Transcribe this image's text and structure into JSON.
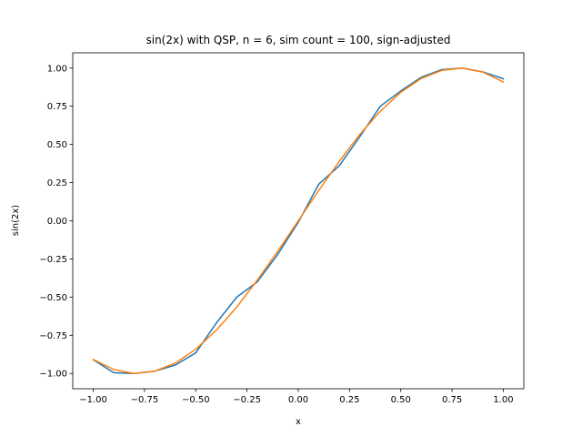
{
  "chart_data": {
    "type": "line",
    "title": "sin(2x) with QSP, n = 6, sim count = 100, sign-adjusted",
    "xlabel": "x",
    "ylabel": "sin(2x)",
    "xlim": [
      -1.1,
      1.1
    ],
    "ylim": [
      -1.1,
      1.1
    ],
    "xticks": [
      "−1.00",
      "−0.75",
      "−0.50",
      "−0.25",
      "0.00",
      "0.25",
      "0.50",
      "0.75",
      "1.00"
    ],
    "xtick_values": [
      -1.0,
      -0.75,
      -0.5,
      -0.25,
      0.0,
      0.25,
      0.5,
      0.75,
      1.0
    ],
    "yticks": [
      "−1.00",
      "−0.75",
      "−0.50",
      "−0.25",
      "0.00",
      "0.25",
      "0.50",
      "0.75",
      "1.00"
    ],
    "ytick_values": [
      -1.0,
      -0.75,
      -0.5,
      -0.25,
      0.0,
      0.25,
      0.5,
      0.75,
      1.0
    ],
    "grid": false,
    "x": [
      -1.0,
      -0.9,
      -0.8,
      -0.7,
      -0.6,
      -0.5,
      -0.4,
      -0.3,
      -0.2,
      -0.1,
      0.0,
      0.1,
      0.2,
      0.3,
      0.4,
      0.5,
      0.6,
      0.7,
      0.8,
      0.9,
      1.0
    ],
    "series": [
      {
        "color": "#1f77b4",
        "values": [
          -0.91,
          -0.995,
          -1.0,
          -0.985,
          -0.945,
          -0.865,
          -0.67,
          -0.5,
          -0.4,
          -0.22,
          -0.01,
          0.24,
          0.36,
          0.55,
          0.75,
          0.85,
          0.94,
          0.99,
          1.0,
          0.975,
          0.93
        ]
      },
      {
        "color": "#ff7f0e",
        "values": [
          -0.909,
          -0.974,
          -1.0,
          -0.985,
          -0.932,
          -0.841,
          -0.717,
          -0.565,
          -0.389,
          -0.199,
          0.0,
          0.199,
          0.389,
          0.565,
          0.717,
          0.841,
          0.932,
          0.985,
          1.0,
          0.974,
          0.909
        ]
      }
    ]
  }
}
